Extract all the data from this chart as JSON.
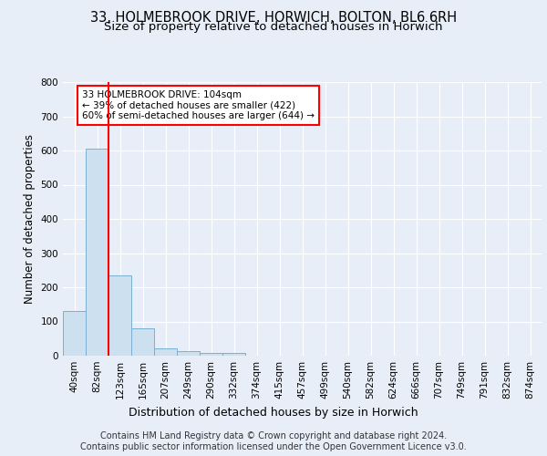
{
  "title_line1": "33, HOLMEBROOK DRIVE, HORWICH, BOLTON, BL6 6RH",
  "title_line2": "Size of property relative to detached houses in Horwich",
  "xlabel": "Distribution of detached houses by size in Horwich",
  "ylabel": "Number of detached properties",
  "bin_labels": [
    "40sqm",
    "82sqm",
    "123sqm",
    "165sqm",
    "207sqm",
    "249sqm",
    "290sqm",
    "332sqm",
    "374sqm",
    "415sqm",
    "457sqm",
    "499sqm",
    "540sqm",
    "582sqm",
    "624sqm",
    "666sqm",
    "707sqm",
    "749sqm",
    "791sqm",
    "832sqm",
    "874sqm"
  ],
  "bar_heights": [
    130,
    605,
    235,
    80,
    22,
    14,
    8,
    8,
    0,
    0,
    0,
    0,
    0,
    0,
    0,
    0,
    0,
    0,
    0,
    0,
    0
  ],
  "bar_color": "#cce0f0",
  "bar_edgecolor": "#7ab0d4",
  "annotation_text": "33 HOLMEBROOK DRIVE: 104sqm\n← 39% of detached houses are smaller (422)\n60% of semi-detached houses are larger (644) →",
  "annotation_box_color": "white",
  "annotation_box_edgecolor": "red",
  "vline_color": "red",
  "ylim": [
    0,
    800
  ],
  "yticks": [
    0,
    100,
    200,
    300,
    400,
    500,
    600,
    700,
    800
  ],
  "footer_text": "Contains HM Land Registry data © Crown copyright and database right 2024.\nContains public sector information licensed under the Open Government Licence v3.0.",
  "background_color": "#e8eef8",
  "plot_bg_color": "#e8eef8",
  "grid_color": "#ffffff",
  "title_fontsize": 10.5,
  "subtitle_fontsize": 9.5,
  "axis_label_fontsize": 8.5,
  "tick_fontsize": 7.5,
  "footer_fontsize": 7.0,
  "annotation_fontsize": 7.5
}
